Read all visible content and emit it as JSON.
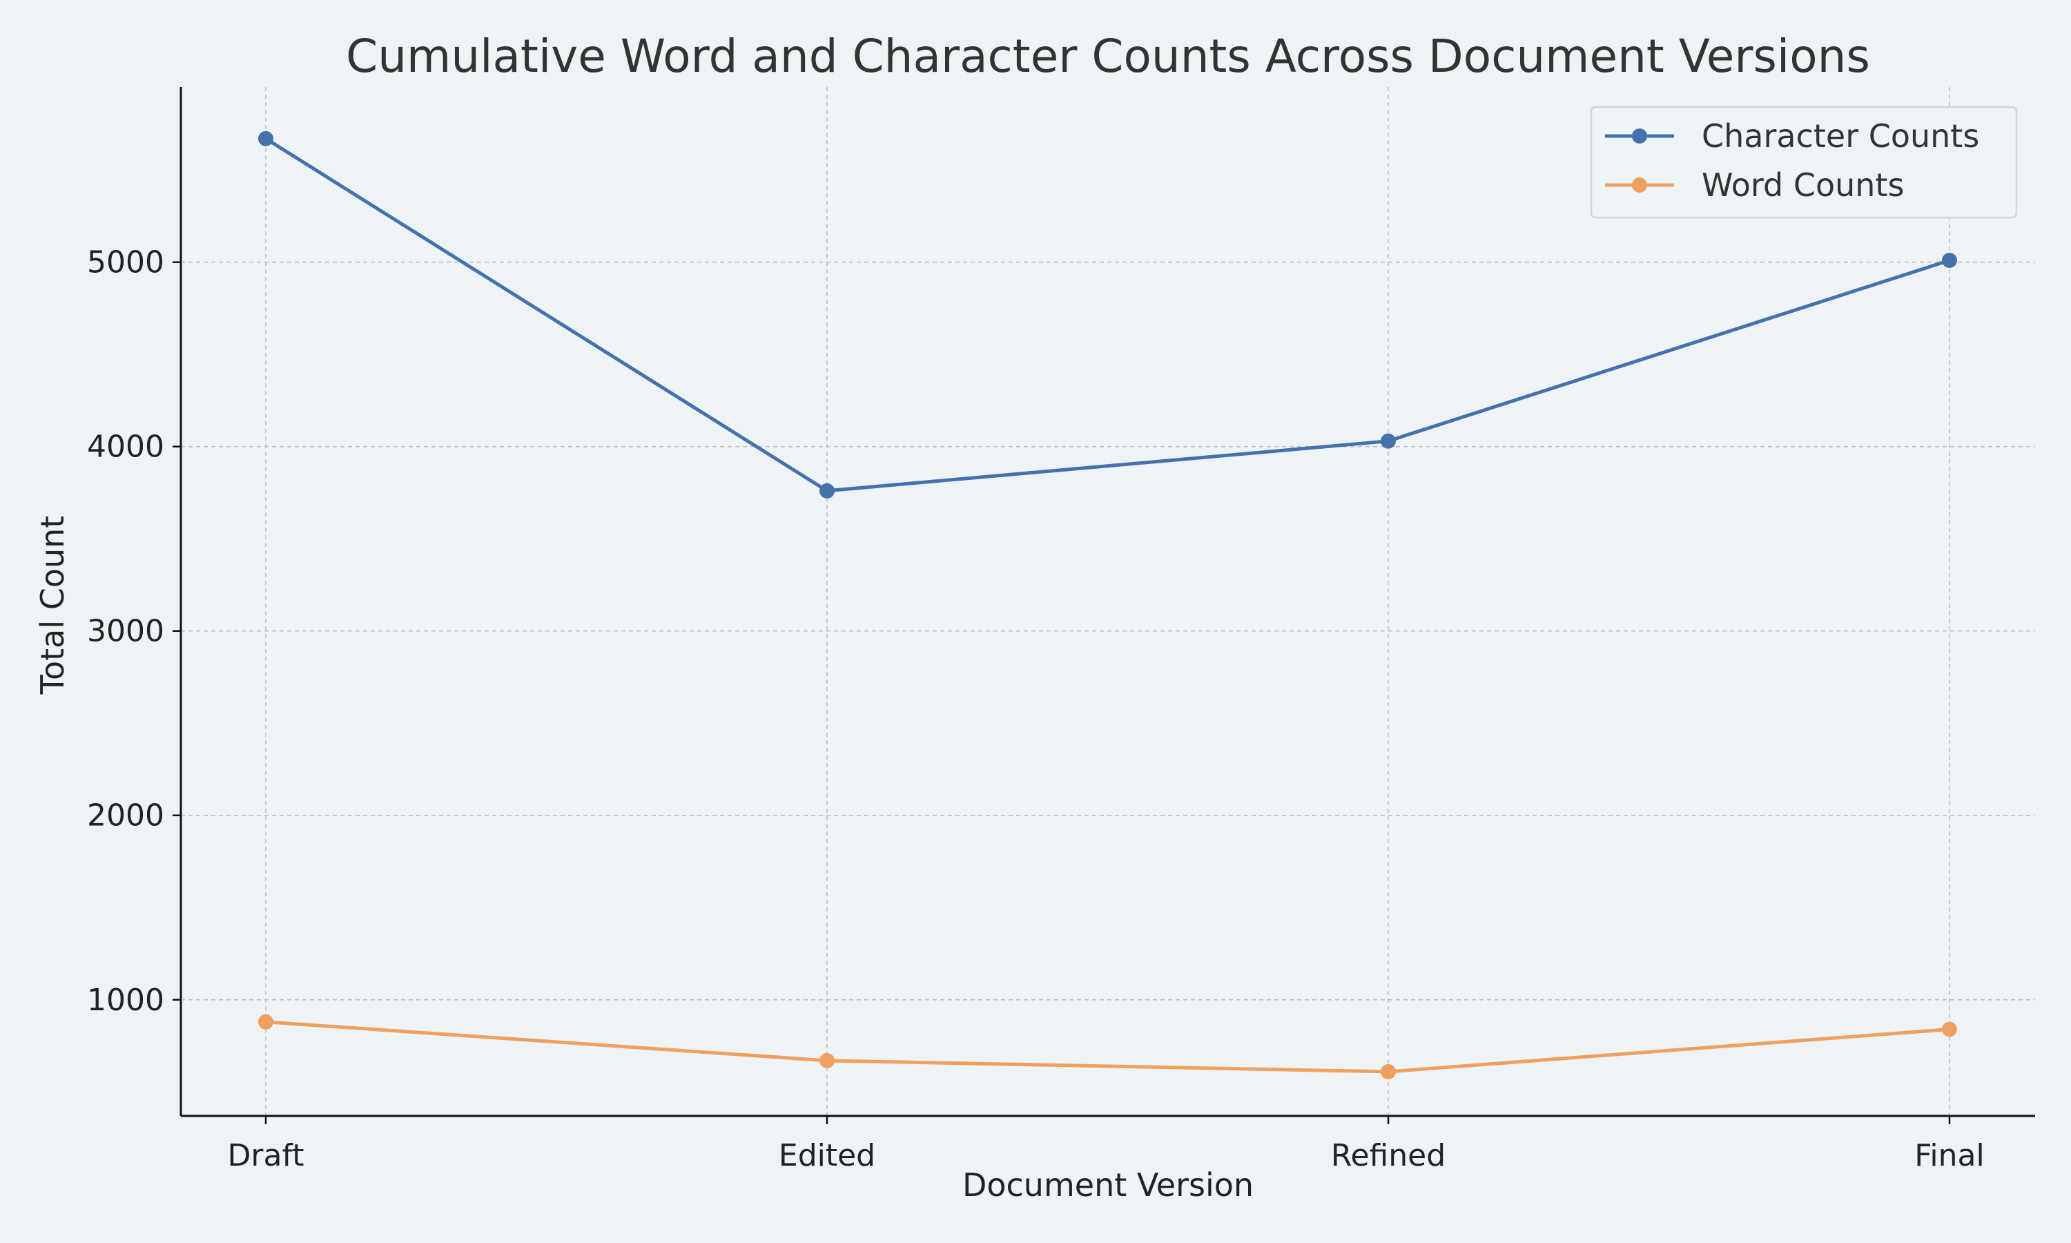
{
  "chart_data": {
    "type": "line",
    "title": "Cumulative Word and Character Counts Across Document Versions",
    "xlabel": "Document Version",
    "ylabel": "Total Count",
    "categories": [
      "Draft",
      "Edited",
      "Refined",
      "Final"
    ],
    "ylim": [
      370,
      5950
    ],
    "yticks": [
      1000,
      2000,
      3000,
      4000,
      5000
    ],
    "grid": true,
    "legend_position": "top-right",
    "series": [
      {
        "name": "Character Counts",
        "values": [
          5670,
          3760,
          4030,
          5010
        ],
        "color": "#4571ad",
        "marker": "circle"
      },
      {
        "name": "Word Counts",
        "values": [
          880,
          670,
          610,
          840
        ],
        "color": "#f0a05e",
        "marker": "circle"
      }
    ]
  }
}
